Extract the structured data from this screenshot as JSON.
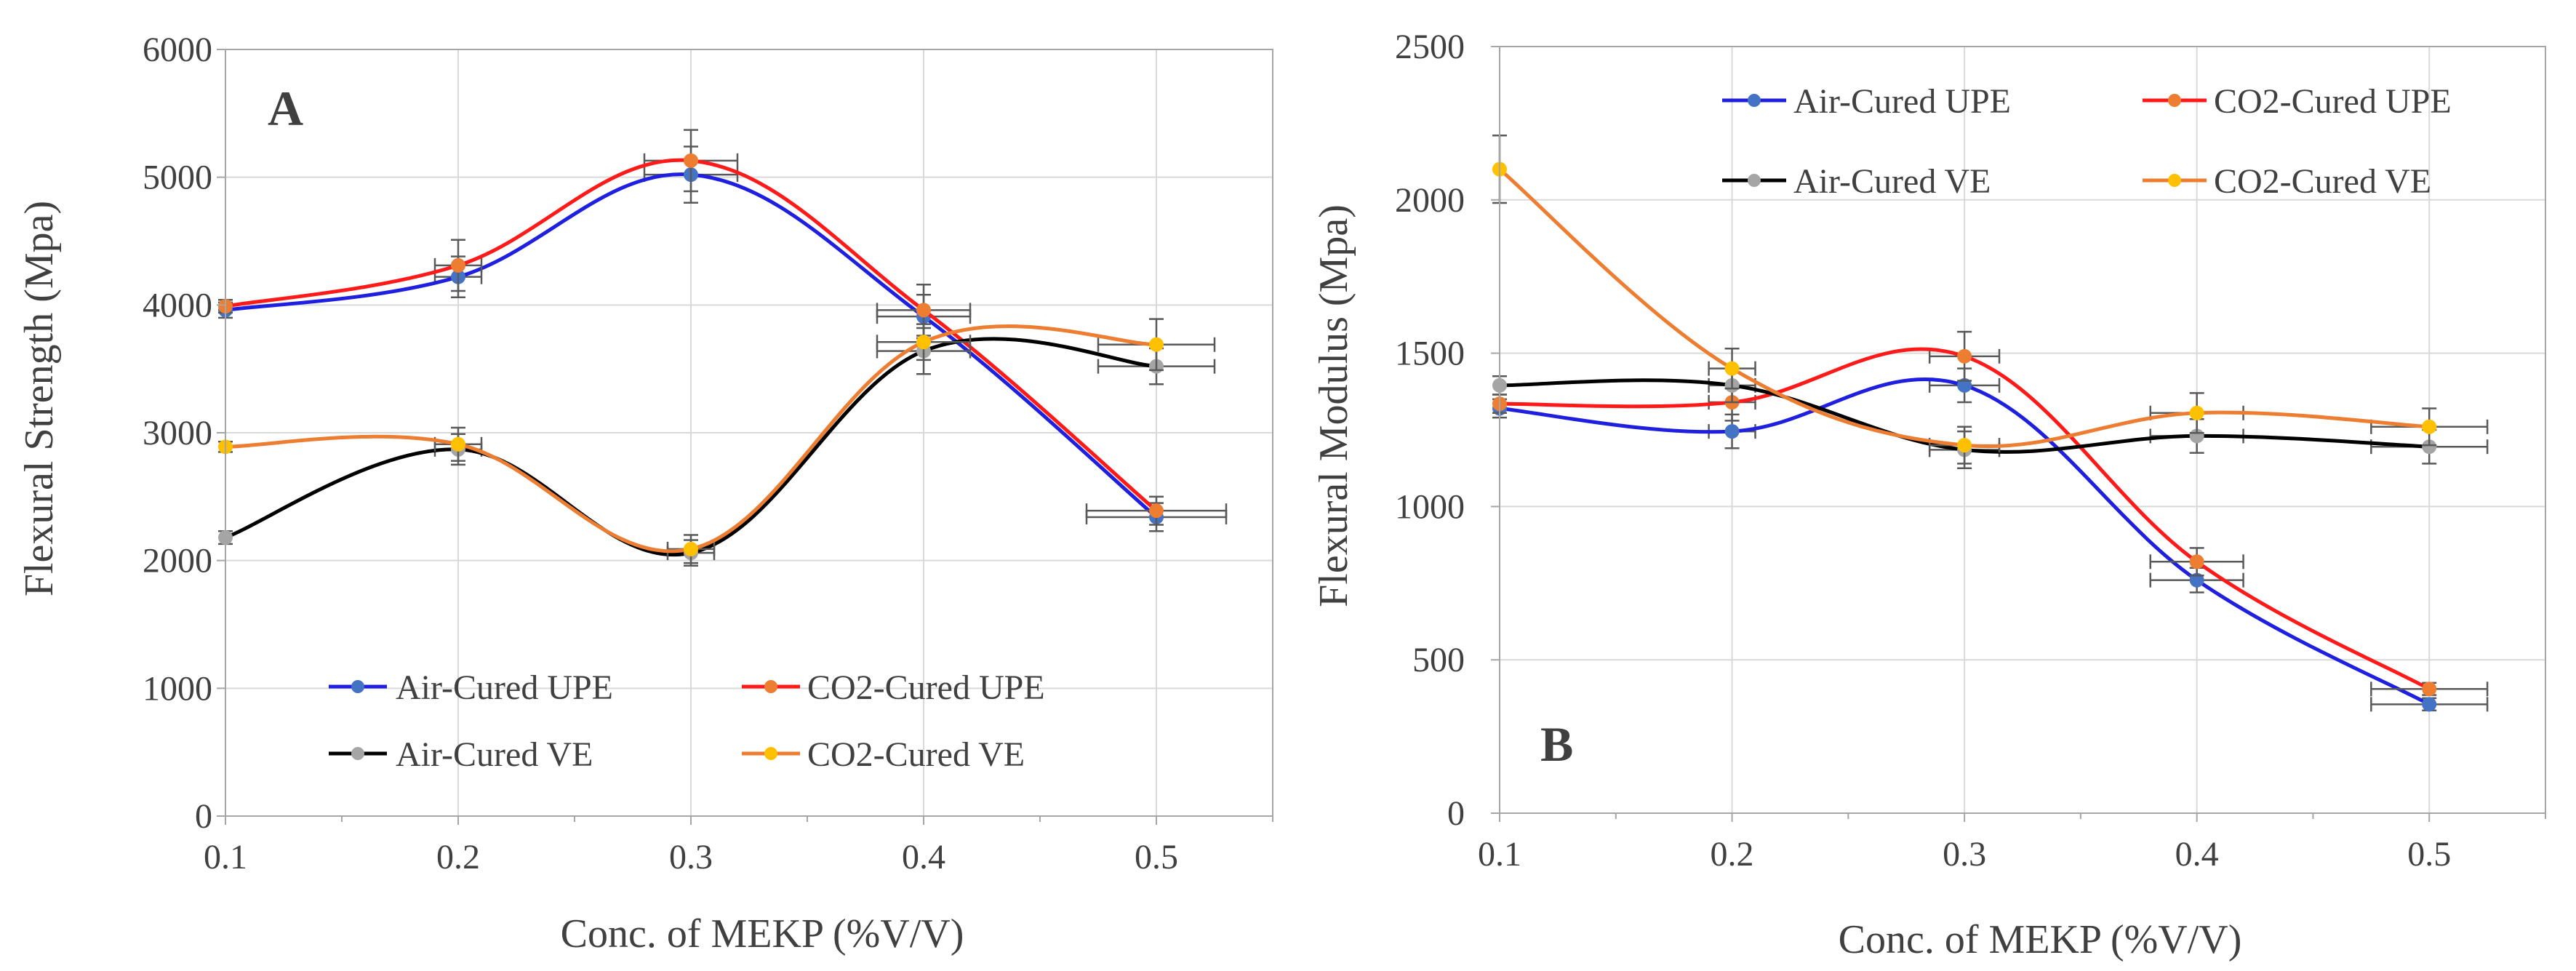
{
  "chart_data": [
    {
      "type": "line",
      "panel_label": "A",
      "xlabel": "Conc. of MEKP (%V/V)",
      "ylabel": "Flexural Strength (Mpa)",
      "xlim": [
        0.1,
        0.55
      ],
      "ylim": [
        0,
        6000
      ],
      "x_ticks": [
        0.1,
        0.2,
        0.3,
        0.4,
        0.5
      ],
      "x_tick_labels": [
        "0.1",
        "0.2",
        "0.3",
        "0.4",
        "0.5"
      ],
      "y_ticks": [
        0,
        1000,
        2000,
        3000,
        4000,
        5000,
        6000
      ],
      "y_tick_labels": [
        "0",
        "1000",
        "2000",
        "3000",
        "4000",
        "5000",
        "6000"
      ],
      "legend_position": "bottom-left",
      "x": [
        0.1,
        0.2,
        0.3,
        0.4,
        0.5
      ],
      "series": [
        {
          "name": "Air-Cured UPE",
          "line_color": "#1f1fe0",
          "marker_color": "#4472c4",
          "values": [
            3960,
            4220,
            5020,
            3910,
            2340
          ],
          "y_err": [
            60,
            160,
            220,
            170,
            110
          ],
          "x_err": [
            0,
            0.01,
            0.02,
            0.02,
            0.03
          ]
        },
        {
          "name": "CO2-Cured UPE",
          "line_color": "#ff1a1a",
          "marker_color": "#ed7d31",
          "values": [
            3990,
            4310,
            5130,
            3960,
            2390
          ],
          "y_err": [
            50,
            200,
            240,
            200,
            110
          ],
          "x_err": [
            0,
            0.01,
            0.02,
            0.02,
            0.03
          ]
        },
        {
          "name": "Air-Cured VE",
          "line_color": "#000000",
          "marker_color": "#a5a5a5",
          "values": [
            2180,
            2870,
            2060,
            3640,
            3520
          ],
          "y_err": [
            50,
            120,
            100,
            180,
            140
          ],
          "x_err": [
            0,
            0.01,
            0.01,
            0.02,
            0.025
          ]
        },
        {
          "name": "CO2-Cured VE",
          "line_color": "#ed7d31",
          "marker_color": "#ffc000",
          "values": [
            2890,
            2910,
            2090,
            3710,
            3690
          ],
          "y_err": [
            40,
            130,
            110,
            140,
            200
          ],
          "x_err": [
            0,
            0.01,
            0.01,
            0.02,
            0.025
          ]
        }
      ]
    },
    {
      "type": "line",
      "panel_label": "B",
      "xlabel": "Conc. of MEKP (%V/V)",
      "ylabel": "Flexural Modulus  (Mpa)",
      "xlim": [
        0.1,
        0.55
      ],
      "ylim": [
        0,
        2500
      ],
      "x_ticks": [
        0.1,
        0.2,
        0.3,
        0.4,
        0.5
      ],
      "x_tick_labels": [
        "0.1",
        "0.2",
        "0.3",
        "0.4",
        "0.5"
      ],
      "y_ticks": [
        0,
        500,
        1000,
        1500,
        2000,
        2500
      ],
      "y_tick_labels": [
        "0",
        "500",
        "1000",
        "1500",
        "2000",
        "2500"
      ],
      "legend_position": "top",
      "x": [
        0.1,
        0.2,
        0.3,
        0.4,
        0.5
      ],
      "series": [
        {
          "name": "Air-Cured UPE",
          "line_color": "#1f1fe0",
          "marker_color": "#4472c4",
          "values": [
            1320,
            1245,
            1395,
            760,
            355
          ],
          "y_err": [
            30,
            55,
            55,
            40,
            20
          ],
          "x_err": [
            0,
            0.01,
            0.015,
            0.02,
            0.025
          ]
        },
        {
          "name": "CO2-Cured UPE",
          "line_color": "#ff1a1a",
          "marker_color": "#ed7d31",
          "values": [
            1335,
            1340,
            1490,
            820,
            405
          ],
          "y_err": [
            30,
            60,
            80,
            45,
            20
          ],
          "x_err": [
            0,
            0.01,
            0.015,
            0.02,
            0.025
          ]
        },
        {
          "name": "Air-Cured VE",
          "line_color": "#000000",
          "marker_color": "#a5a5a5",
          "values": [
            1395,
            1395,
            1185,
            1230,
            1195
          ],
          "y_err": [
            30,
            55,
            60,
            55,
            55
          ],
          "x_err": [
            0,
            0.01,
            0.015,
            0.02,
            0.025
          ]
        },
        {
          "name": "CO2-Cured VE",
          "line_color": "#ed7d31",
          "marker_color": "#ffc000",
          "values": [
            2100,
            1450,
            1200,
            1305,
            1260
          ],
          "y_err": [
            110,
            65,
            60,
            65,
            60
          ],
          "x_err": [
            0,
            0.01,
            0.015,
            0.02,
            0.025
          ]
        }
      ]
    }
  ]
}
